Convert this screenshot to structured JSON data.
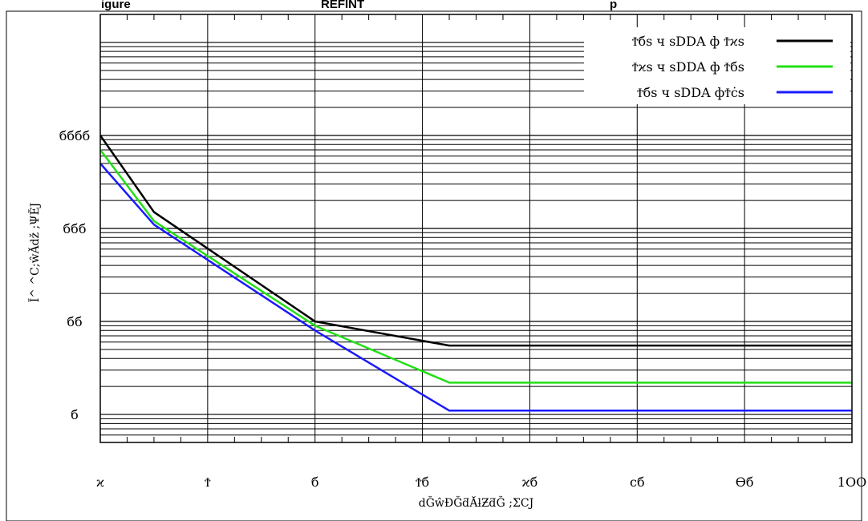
{
  "title_fragments": {
    "left": "igure",
    "middle": "REFINT",
    "right": "p"
  },
  "chart_data": {
    "type": "line",
    "title": "",
    "xlabel": "dĞŵĐĞƌĂƚƵƌĞ ;ΣCͿ",
    "ylabel": "Ĭ^ ^C;ŵĂǆ ;ΨĔͿ",
    "x_scale": "linear",
    "y_scale": "log",
    "xlim": [
      -40,
      100
    ],
    "ylim": [
      0.5,
      20000
    ],
    "x_ticks": [
      -40,
      -20,
      0,
      20,
      40,
      60,
      80,
      100
    ],
    "x_tick_labels": [
      "ϰ",
      "Ϯ",
      "б",
      "Ϯб",
      "ϰб",
      "ϲб",
      "ϴб",
      "1OO"
    ],
    "y_ticks": [
      1,
      10,
      100,
      1000
    ],
    "y_tick_labels": [
      "б",
      "бб",
      "ббб",
      "бббб"
    ],
    "grid": true,
    "legend_position": "top-right",
    "series": [
      {
        "name": "Ϯбs ч sDDA ф Ϯϰs",
        "color": "#000000",
        "x": [
          -40,
          -30,
          0,
          25,
          100
        ],
        "y": [
          1000,
          150,
          10,
          5.5,
          5.5
        ]
      },
      {
        "name": "Ϯϰs ч sDDA ф Ϯбs",
        "color": "#22e016",
        "x": [
          -40,
          -30,
          0,
          25,
          100
        ],
        "y": [
          700,
          120,
          9,
          2.2,
          2.2
        ]
      },
      {
        "name": "Ϯбs ч sDDA фϮċs",
        "color": "#1a1aff",
        "x": [
          -40,
          -30,
          0,
          25,
          100
        ],
        "y": [
          500,
          110,
          8,
          1.1,
          1.1
        ]
      }
    ]
  }
}
